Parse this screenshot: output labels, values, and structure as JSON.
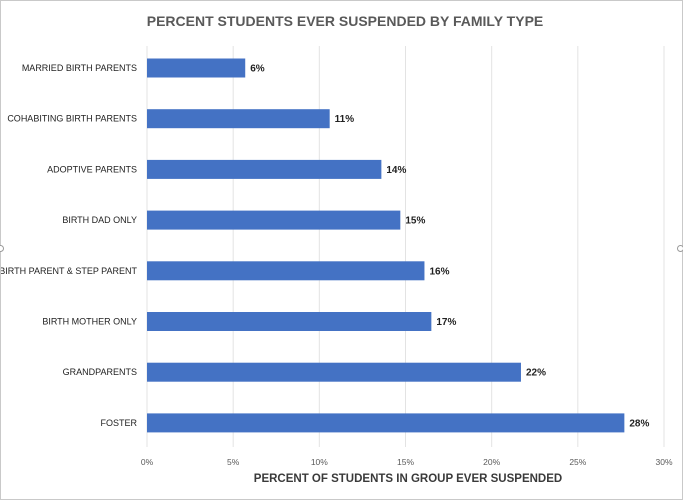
{
  "chart_data": {
    "type": "bar",
    "orientation": "horizontal",
    "title": "PERCENT STUDENTS EVER SUSPENDED BY FAMILY TYPE",
    "xlabel": "PERCENT OF STUDENTS IN GROUP EVER SUSPENDED",
    "ylabel": "",
    "categories": [
      "MARRIED BIRTH PARENTS",
      "COHABITING BIRTH PARENTS",
      "ADOPTIVE PARENTS",
      "BIRTH DAD ONLY",
      "BIRTH PARENT & STEP PARENT",
      "BIRTH MOTHER ONLY",
      "GRANDPARENTS",
      "FOSTER"
    ],
    "values": [
      5.7,
      10.6,
      13.6,
      14.7,
      16.1,
      16.5,
      21.7,
      27.7
    ],
    "data_labels": [
      "6%",
      "11%",
      "14%",
      "15%",
      "16%",
      "17%",
      "22%",
      "28%"
    ],
    "xlim": [
      0,
      30
    ],
    "ticks": [
      0,
      5,
      10,
      15,
      20,
      25,
      30
    ],
    "tick_labels": [
      "0%",
      "5%",
      "10%",
      "15%",
      "20%",
      "25%",
      "30%"
    ],
    "grid": "vertical",
    "legend": "none",
    "bar_color": "#4472C4",
    "grid_color": "#e3e3e3"
  }
}
